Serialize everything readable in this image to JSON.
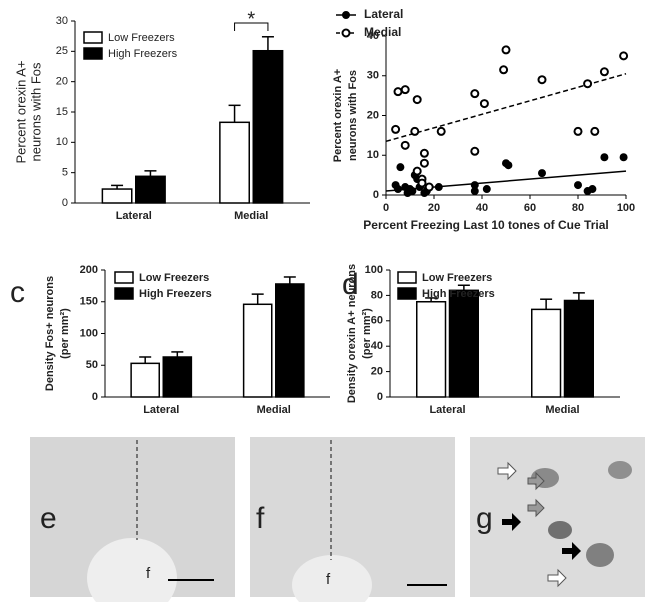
{
  "chart_data": [
    {
      "type": "bar",
      "ylabel": [
        "Percent orexin A+",
        "neurons with Fos"
      ],
      "categories": [
        "Lateral",
        "Medial"
      ],
      "series": [
        {
          "name": "Low Freezers",
          "color": "#ffffff",
          "values": [
            2.3,
            13.3
          ],
          "errors": [
            0.6,
            2.8
          ]
        },
        {
          "name": "High Freezers",
          "color": "#000000",
          "values": [
            4.4,
            25.1
          ],
          "errors": [
            0.9,
            2.3
          ]
        }
      ],
      "ylim": [
        0,
        30
      ],
      "yticks": [
        0,
        5,
        10,
        15,
        20,
        25,
        30
      ],
      "annotation": "*"
    },
    {
      "type": "scatter",
      "xlabel": "Percent Freezing Last 10 tones of Cue Trial",
      "ylabel": [
        "Percent orexin A+",
        "neurons with Fos"
      ],
      "series": [
        {
          "name": "Lateral",
          "color": "#000000",
          "marker": "filled",
          "linestyle": "solid",
          "x": [
            4,
            6,
            8,
            9,
            11,
            12,
            13,
            14,
            16,
            17,
            22,
            37,
            37,
            42,
            50,
            51,
            65,
            80,
            84,
            86,
            91,
            99,
            5,
            10
          ],
          "y": [
            2.5,
            7,
            2,
            0.5,
            1,
            5,
            4,
            2,
            0.5,
            1,
            2,
            2.5,
            1,
            1.5,
            8,
            7.5,
            5.5,
            2.5,
            1,
            1.5,
            9.5,
            9.5,
            1.5,
            1.5
          ],
          "trend": {
            "x": [
              0,
              100
            ],
            "y": [
              1,
              6
            ]
          }
        },
        {
          "name": "Medial",
          "color": "#ffffff",
          "marker": "open",
          "linestyle": "dashed",
          "x": [
            5,
            8,
            4,
            8,
            13,
            12,
            13,
            15,
            16,
            16,
            15,
            18,
            23,
            37,
            41,
            37,
            49,
            50,
            65,
            80,
            84,
            87,
            91,
            99
          ],
          "y": [
            26,
            26.5,
            16.5,
            12.5,
            24,
            16,
            6,
            4,
            10.5,
            8,
            3,
            2,
            16,
            25.5,
            23,
            11,
            31.5,
            36.5,
            29,
            16,
            28,
            16,
            31,
            35
          ],
          "trend": {
            "x": [
              0,
              100
            ],
            "y": [
              13.5,
              30.5
            ]
          }
        }
      ],
      "xlim": [
        0,
        100
      ],
      "xticks": [
        0,
        20,
        40,
        60,
        80,
        100
      ],
      "ylim": [
        0,
        40
      ],
      "yticks": [
        0,
        10,
        20,
        30,
        40
      ]
    },
    {
      "type": "bar",
      "panel": "c",
      "ylabel": [
        "Density Fos+ neurons",
        "(per mm²)"
      ],
      "categories": [
        "Lateral",
        "Medial"
      ],
      "series": [
        {
          "name": "Low Freezers",
          "color": "#ffffff",
          "values": [
            53,
            146
          ],
          "errors": [
            10,
            16
          ]
        },
        {
          "name": "High Freezers",
          "color": "#000000",
          "values": [
            63,
            178
          ],
          "errors": [
            8,
            11
          ]
        }
      ],
      "ylim": [
        0,
        200
      ],
      "yticks": [
        0,
        50,
        100,
        150,
        200
      ]
    },
    {
      "type": "bar",
      "panel": "d",
      "ylabel": [
        "Density orexin A+ neurons",
        "(per mm²)"
      ],
      "categories": [
        "Lateral",
        "Medial"
      ],
      "series": [
        {
          "name": "Low Freezers",
          "color": "#ffffff",
          "values": [
            75,
            69
          ],
          "errors": [
            3,
            8
          ]
        },
        {
          "name": "High Freezers",
          "color": "#000000",
          "values": [
            84,
            76
          ],
          "errors": [
            4,
            6
          ]
        }
      ],
      "ylim": [
        0,
        100
      ],
      "yticks": [
        0,
        20,
        40,
        60,
        80,
        100
      ]
    }
  ],
  "images": [
    {
      "panel": "e",
      "label": "f"
    },
    {
      "panel": "f",
      "label": "f"
    },
    {
      "panel": "g"
    }
  ]
}
